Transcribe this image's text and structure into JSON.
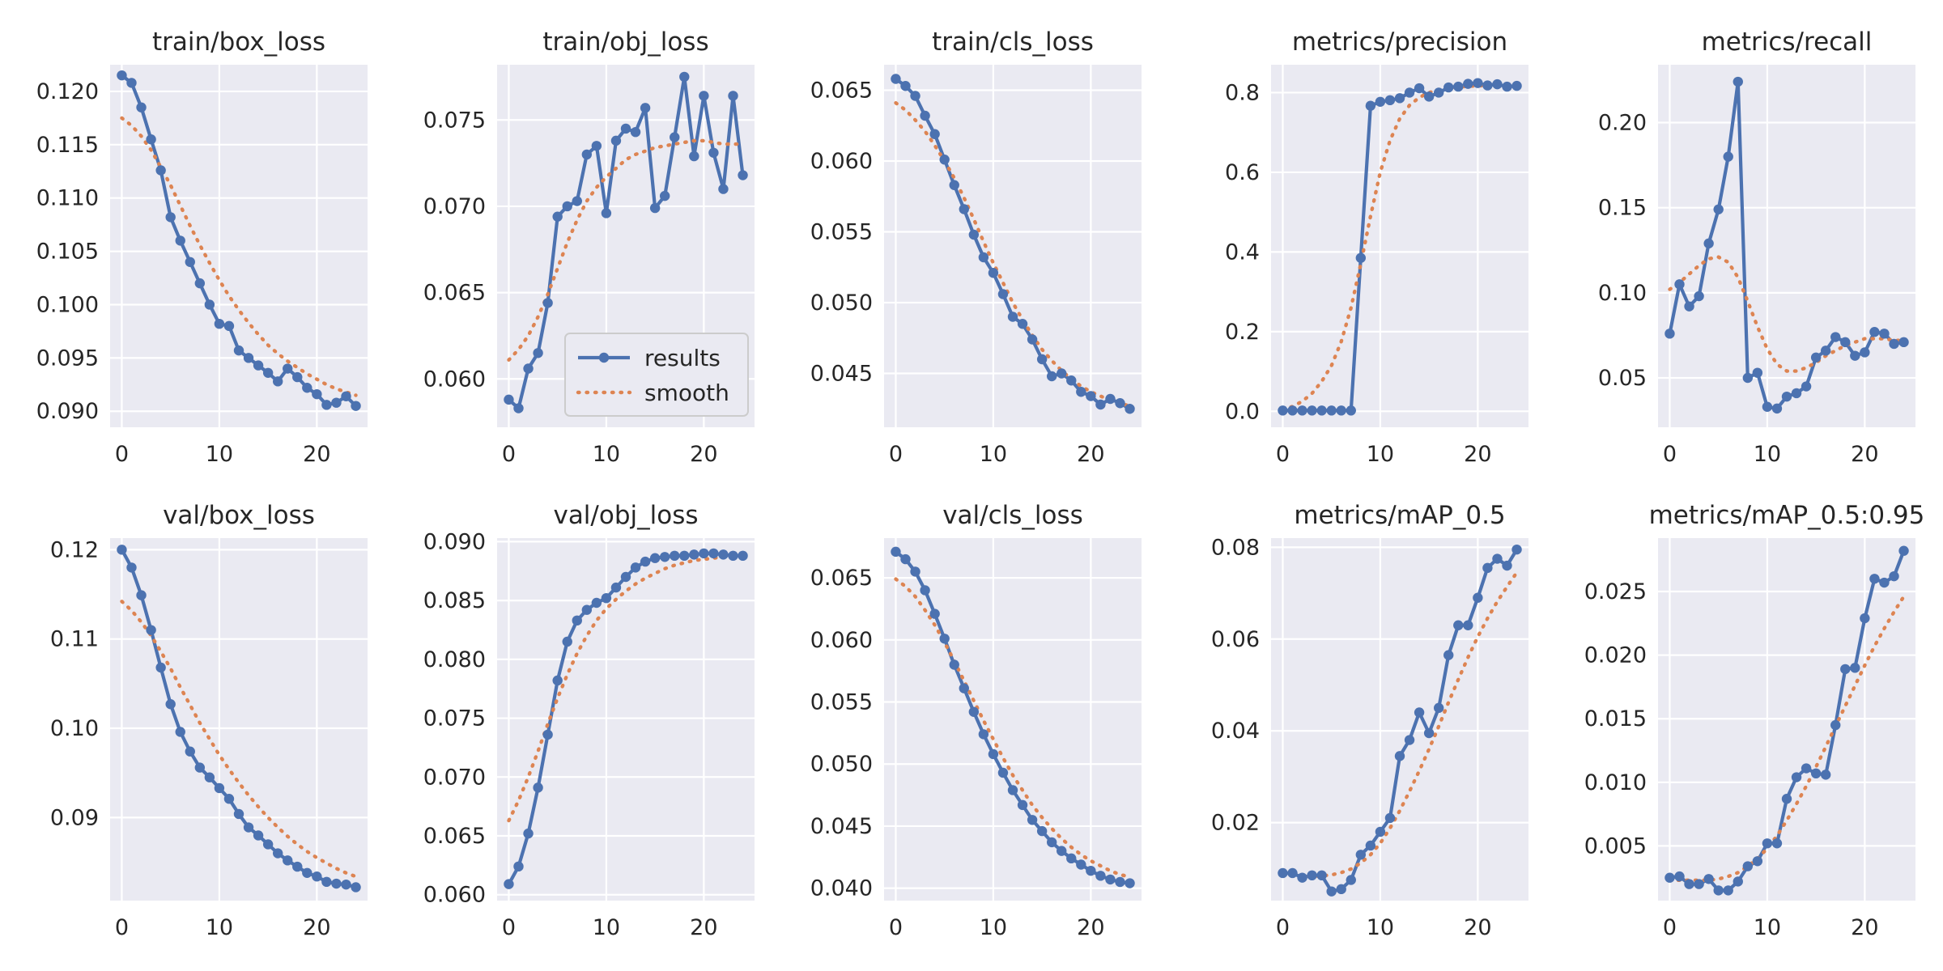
{
  "colors": {
    "axes_bg": "#eaeaf2",
    "grid": "#ffffff",
    "results": "#4c72b0",
    "smooth": "#dd8452",
    "text": "#262626"
  },
  "legend": {
    "results_label": "results",
    "smooth_label": "smooth",
    "placement": "lower-right",
    "panel": 1
  },
  "chart_data": [
    {
      "type": "line",
      "title": "train/box_loss",
      "x": [
        0,
        1,
        2,
        3,
        4,
        5,
        6,
        7,
        8,
        9,
        10,
        11,
        12,
        13,
        14,
        15,
        16,
        17,
        18,
        19,
        20,
        21,
        22,
        23,
        24
      ],
      "xticks": [
        0,
        10,
        20
      ],
      "ylim": [
        0.0885,
        0.1225
      ],
      "yticks": [
        0.09,
        0.095,
        0.1,
        0.105,
        0.11,
        0.115,
        0.12
      ],
      "ydec": 3,
      "series": [
        {
          "name": "results",
          "values": [
            0.1215,
            0.1208,
            0.1185,
            0.1155,
            0.1126,
            0.1082,
            0.106,
            0.104,
            0.102,
            0.1,
            0.0982,
            0.098,
            0.0957,
            0.095,
            0.0943,
            0.0936,
            0.0928,
            0.094,
            0.0932,
            0.0922,
            0.0916,
            0.0906,
            0.0908,
            0.0914,
            0.0905
          ]
        },
        {
          "name": "smooth",
          "values": [
            0.1175,
            0.1168,
            0.1158,
            0.1145,
            0.1129,
            0.1112,
            0.1093,
            0.1074,
            0.1056,
            0.1039,
            0.1023,
            0.1008,
            0.0995,
            0.0983,
            0.0972,
            0.0962,
            0.0954,
            0.0947,
            0.0941,
            0.0935,
            0.093,
            0.0925,
            0.0921,
            0.0918,
            0.0915
          ]
        }
      ]
    },
    {
      "type": "line",
      "title": "train/obj_loss",
      "x": [
        0,
        1,
        2,
        3,
        4,
        5,
        6,
        7,
        8,
        9,
        10,
        11,
        12,
        13,
        14,
        15,
        16,
        17,
        18,
        19,
        20,
        21,
        22,
        23,
        24
      ],
      "xticks": [
        0,
        10,
        20
      ],
      "ylim": [
        0.0572,
        0.0782
      ],
      "yticks": [
        0.06,
        0.065,
        0.07,
        0.075
      ],
      "ydec": 3,
      "series": [
        {
          "name": "results",
          "values": [
            0.0588,
            0.0583,
            0.0606,
            0.0615,
            0.0644,
            0.0694,
            0.07,
            0.0703,
            0.073,
            0.0735,
            0.0696,
            0.0738,
            0.0745,
            0.0743,
            0.0757,
            0.0699,
            0.0706,
            0.074,
            0.0775,
            0.0729,
            0.0764,
            0.0731,
            0.071,
            0.0764,
            0.0718
          ]
        },
        {
          "name": "smooth",
          "values": [
            0.0611,
            0.0617,
            0.0625,
            0.0636,
            0.0649,
            0.0664,
            0.0679,
            0.0692,
            0.0703,
            0.0711,
            0.0717,
            0.0722,
            0.0727,
            0.073,
            0.0732,
            0.0734,
            0.0735,
            0.0736,
            0.0737,
            0.0738,
            0.0738,
            0.0737,
            0.0736,
            0.0736,
            0.0736
          ]
        }
      ]
    },
    {
      "type": "line",
      "title": "train/cls_loss",
      "x": [
        0,
        1,
        2,
        3,
        4,
        5,
        6,
        7,
        8,
        9,
        10,
        11,
        12,
        13,
        14,
        15,
        16,
        17,
        18,
        19,
        20,
        21,
        22,
        23,
        24
      ],
      "xticks": [
        0,
        10,
        20
      ],
      "ylim": [
        0.0412,
        0.0668
      ],
      "yticks": [
        0.045,
        0.05,
        0.055,
        0.06,
        0.065
      ],
      "ydec": 3,
      "series": [
        {
          "name": "results",
          "values": [
            0.0658,
            0.0653,
            0.0646,
            0.0632,
            0.0619,
            0.0601,
            0.0583,
            0.0566,
            0.0548,
            0.0532,
            0.0521,
            0.0506,
            0.049,
            0.0485,
            0.0474,
            0.046,
            0.0448,
            0.045,
            0.0445,
            0.0437,
            0.0434,
            0.0428,
            0.0432,
            0.0429,
            0.0425
          ]
        },
        {
          "name": "smooth",
          "values": [
            0.0641,
            0.0636,
            0.0629,
            0.0621,
            0.0611,
            0.06,
            0.0588,
            0.0574,
            0.0559,
            0.0543,
            0.0528,
            0.0514,
            0.05,
            0.0488,
            0.0477,
            0.0467,
            0.0459,
            0.0452,
            0.0446,
            0.0441,
            0.0437,
            0.0434,
            0.0431,
            0.0429,
            0.0427
          ]
        }
      ]
    },
    {
      "type": "line",
      "title": "metrics/precision",
      "x": [
        0,
        1,
        2,
        3,
        4,
        5,
        6,
        7,
        8,
        9,
        10,
        11,
        12,
        13,
        14,
        15,
        16,
        17,
        18,
        19,
        20,
        21,
        22,
        23,
        24
      ],
      "xticks": [
        0,
        10,
        20
      ],
      "ylim": [
        -0.04,
        0.87
      ],
      "yticks": [
        0.0,
        0.2,
        0.4,
        0.6,
        0.8
      ],
      "ydec": 1,
      "series": [
        {
          "name": "results",
          "values": [
            0.002,
            0.002,
            0.002,
            0.002,
            0.002,
            0.002,
            0.002,
            0.002,
            0.385,
            0.767,
            0.777,
            0.781,
            0.786,
            0.8,
            0.811,
            0.79,
            0.8,
            0.813,
            0.815,
            0.822,
            0.824,
            0.818,
            0.821,
            0.815,
            0.817
          ]
        },
        {
          "name": "smooth",
          "values": [
            0.005,
            0.012,
            0.025,
            0.045,
            0.075,
            0.115,
            0.175,
            0.26,
            0.37,
            0.49,
            0.6,
            0.68,
            0.735,
            0.768,
            0.788,
            0.8,
            0.807,
            0.811,
            0.814,
            0.816,
            0.817,
            0.818,
            0.818,
            0.818,
            0.818
          ]
        }
      ]
    },
    {
      "type": "line",
      "title": "metrics/recall",
      "x": [
        0,
        1,
        2,
        3,
        4,
        5,
        6,
        7,
        8,
        9,
        10,
        11,
        12,
        13,
        14,
        15,
        16,
        17,
        18,
        19,
        20,
        21,
        22,
        23,
        24
      ],
      "xticks": [
        0,
        10,
        20
      ],
      "ylim": [
        0.021,
        0.234
      ],
      "yticks": [
        0.05,
        0.1,
        0.15,
        0.2
      ],
      "ydec": 2,
      "series": [
        {
          "name": "results",
          "values": [
            0.076,
            0.105,
            0.092,
            0.098,
            0.129,
            0.149,
            0.18,
            0.224,
            0.05,
            0.053,
            0.033,
            0.032,
            0.039,
            0.041,
            0.045,
            0.062,
            0.066,
            0.074,
            0.071,
            0.063,
            0.065,
            0.077,
            0.076,
            0.07,
            0.071
          ]
        },
        {
          "name": "smooth",
          "values": [
            0.102,
            0.106,
            0.111,
            0.116,
            0.12,
            0.121,
            0.118,
            0.109,
            0.095,
            0.08,
            0.067,
            0.058,
            0.054,
            0.054,
            0.056,
            0.059,
            0.063,
            0.066,
            0.069,
            0.071,
            0.073,
            0.073,
            0.073,
            0.072,
            0.072
          ]
        }
      ]
    },
    {
      "type": "line",
      "title": "val/box_loss",
      "x": [
        0,
        1,
        2,
        3,
        4,
        5,
        6,
        7,
        8,
        9,
        10,
        11,
        12,
        13,
        14,
        15,
        16,
        17,
        18,
        19,
        20,
        21,
        22,
        23,
        24
      ],
      "xticks": [
        0,
        10,
        20
      ],
      "ylim": [
        0.0807,
        0.1213
      ],
      "yticks": [
        0.09,
        0.1,
        0.11,
        0.12
      ],
      "ydec": 2,
      "series": [
        {
          "name": "results",
          "values": [
            0.12,
            0.118,
            0.1149,
            0.111,
            0.1068,
            0.1027,
            0.0996,
            0.0974,
            0.0956,
            0.0945,
            0.0933,
            0.0921,
            0.0904,
            0.0889,
            0.088,
            0.087,
            0.086,
            0.0852,
            0.0845,
            0.0838,
            0.0834,
            0.0828,
            0.0826,
            0.0825,
            0.0822
          ]
        },
        {
          "name": "smooth",
          "values": [
            0.1142,
            0.1132,
            0.1119,
            0.1104,
            0.1086,
            0.1067,
            0.1046,
            0.1026,
            0.1006,
            0.0988,
            0.097,
            0.0954,
            0.0939,
            0.0925,
            0.0912,
            0.09,
            0.0889,
            0.0879,
            0.087,
            0.0862,
            0.0855,
            0.0849,
            0.0843,
            0.0838,
            0.0834
          ]
        }
      ]
    },
    {
      "type": "line",
      "title": "val/obj_loss",
      "x": [
        0,
        1,
        2,
        3,
        4,
        5,
        6,
        7,
        8,
        9,
        10,
        11,
        12,
        13,
        14,
        15,
        16,
        17,
        18,
        19,
        20,
        21,
        22,
        23,
        24
      ],
      "xticks": [
        0,
        10,
        20
      ],
      "ylim": [
        0.0595,
        0.0903
      ],
      "yticks": [
        0.06,
        0.065,
        0.07,
        0.075,
        0.08,
        0.085,
        0.09
      ],
      "ydec": 3,
      "series": [
        {
          "name": "results",
          "values": [
            0.0609,
            0.0624,
            0.0652,
            0.0691,
            0.0736,
            0.0782,
            0.0815,
            0.0833,
            0.0842,
            0.0848,
            0.0852,
            0.0861,
            0.087,
            0.0878,
            0.0883,
            0.0886,
            0.0887,
            0.0888,
            0.0888,
            0.0889,
            0.089,
            0.089,
            0.0889,
            0.0888,
            0.0888
          ]
        },
        {
          "name": "smooth",
          "values": [
            0.0663,
            0.068,
            0.07,
            0.0722,
            0.0745,
            0.0767,
            0.0787,
            0.0805,
            0.082,
            0.0833,
            0.0843,
            0.0851,
            0.0858,
            0.0864,
            0.0869,
            0.0873,
            0.0877,
            0.088,
            0.0882,
            0.0884,
            0.0885,
            0.0886,
            0.0887,
            0.0888,
            0.0888
          ]
        }
      ]
    },
    {
      "type": "line",
      "title": "val/cls_loss",
      "x": [
        0,
        1,
        2,
        3,
        4,
        5,
        6,
        7,
        8,
        9,
        10,
        11,
        12,
        13,
        14,
        15,
        16,
        17,
        18,
        19,
        20,
        21,
        22,
        23,
        24
      ],
      "xticks": [
        0,
        10,
        20
      ],
      "ylim": [
        0.039,
        0.0682
      ],
      "yticks": [
        0.04,
        0.045,
        0.05,
        0.055,
        0.06,
        0.065
      ],
      "ydec": 3,
      "series": [
        {
          "name": "results",
          "values": [
            0.0671,
            0.0665,
            0.0655,
            0.064,
            0.0621,
            0.0601,
            0.058,
            0.0561,
            0.0542,
            0.0524,
            0.0508,
            0.0493,
            0.0479,
            0.0467,
            0.0455,
            0.0446,
            0.0437,
            0.043,
            0.0424,
            0.0419,
            0.0414,
            0.041,
            0.0407,
            0.0405,
            0.0404
          ]
        },
        {
          "name": "smooth",
          "values": [
            0.0649,
            0.0643,
            0.0635,
            0.0624,
            0.0612,
            0.0598,
            0.0583,
            0.0567,
            0.0551,
            0.0535,
            0.052,
            0.0505,
            0.0491,
            0.0479,
            0.0467,
            0.0457,
            0.0448,
            0.044,
            0.0433,
            0.0427,
            0.0422,
            0.0418,
            0.0414,
            0.0411,
            0.0409
          ]
        }
      ]
    },
    {
      "type": "line",
      "title": "metrics/mAP_0.5",
      "x": [
        0,
        1,
        2,
        3,
        4,
        5,
        6,
        7,
        8,
        9,
        10,
        11,
        12,
        13,
        14,
        15,
        16,
        17,
        18,
        19,
        20,
        21,
        22,
        23,
        24
      ],
      "xticks": [
        0,
        10,
        20
      ],
      "ylim": [
        0.003,
        0.082
      ],
      "yticks": [
        0.02,
        0.04,
        0.06,
        0.08
      ],
      "ydec": 2,
      "series": [
        {
          "name": "results",
          "values": [
            0.009,
            0.009,
            0.008,
            0.0085,
            0.0085,
            0.005,
            0.0055,
            0.0075,
            0.013,
            0.015,
            0.018,
            0.021,
            0.0345,
            0.038,
            0.044,
            0.0395,
            0.045,
            0.0565,
            0.063,
            0.063,
            0.069,
            0.0755,
            0.0775,
            0.076,
            0.0795
          ]
        },
        {
          "name": "smooth",
          "values": [
            0.0085,
            0.0085,
            0.0084,
            0.0083,
            0.0084,
            0.0086,
            0.0091,
            0.0099,
            0.0112,
            0.013,
            0.0155,
            0.0188,
            0.0226,
            0.0268,
            0.0313,
            0.036,
            0.041,
            0.0462,
            0.0512,
            0.056,
            0.0605,
            0.0645,
            0.0682,
            0.0714,
            0.0745
          ]
        }
      ]
    },
    {
      "type": "line",
      "title": "metrics/mAP_0.5:0.95",
      "x": [
        0,
        1,
        2,
        3,
        4,
        5,
        6,
        7,
        8,
        9,
        10,
        11,
        12,
        13,
        14,
        15,
        16,
        17,
        18,
        19,
        20,
        21,
        22,
        23,
        24
      ],
      "xticks": [
        0,
        10,
        20
      ],
      "ylim": [
        0.0007,
        0.0292
      ],
      "yticks": [
        0.005,
        0.01,
        0.015,
        0.02,
        0.025
      ],
      "ydec": 3,
      "series": [
        {
          "name": "results",
          "values": [
            0.0025,
            0.0026,
            0.002,
            0.002,
            0.0024,
            0.0015,
            0.0015,
            0.0022,
            0.0034,
            0.0038,
            0.0052,
            0.0052,
            0.0087,
            0.0104,
            0.0111,
            0.0107,
            0.0106,
            0.0145,
            0.0189,
            0.019,
            0.0229,
            0.026,
            0.0257,
            0.0262,
            0.0282
          ]
        },
        {
          "name": "smooth",
          "values": [
            0.0023,
            0.0023,
            0.0023,
            0.0023,
            0.0023,
            0.0024,
            0.0026,
            0.0029,
            0.0034,
            0.004,
            0.0048,
            0.0058,
            0.007,
            0.0083,
            0.0097,
            0.0112,
            0.0128,
            0.0144,
            0.016,
            0.0176,
            0.0192,
            0.0207,
            0.0221,
            0.0234,
            0.0246
          ]
        }
      ]
    }
  ]
}
